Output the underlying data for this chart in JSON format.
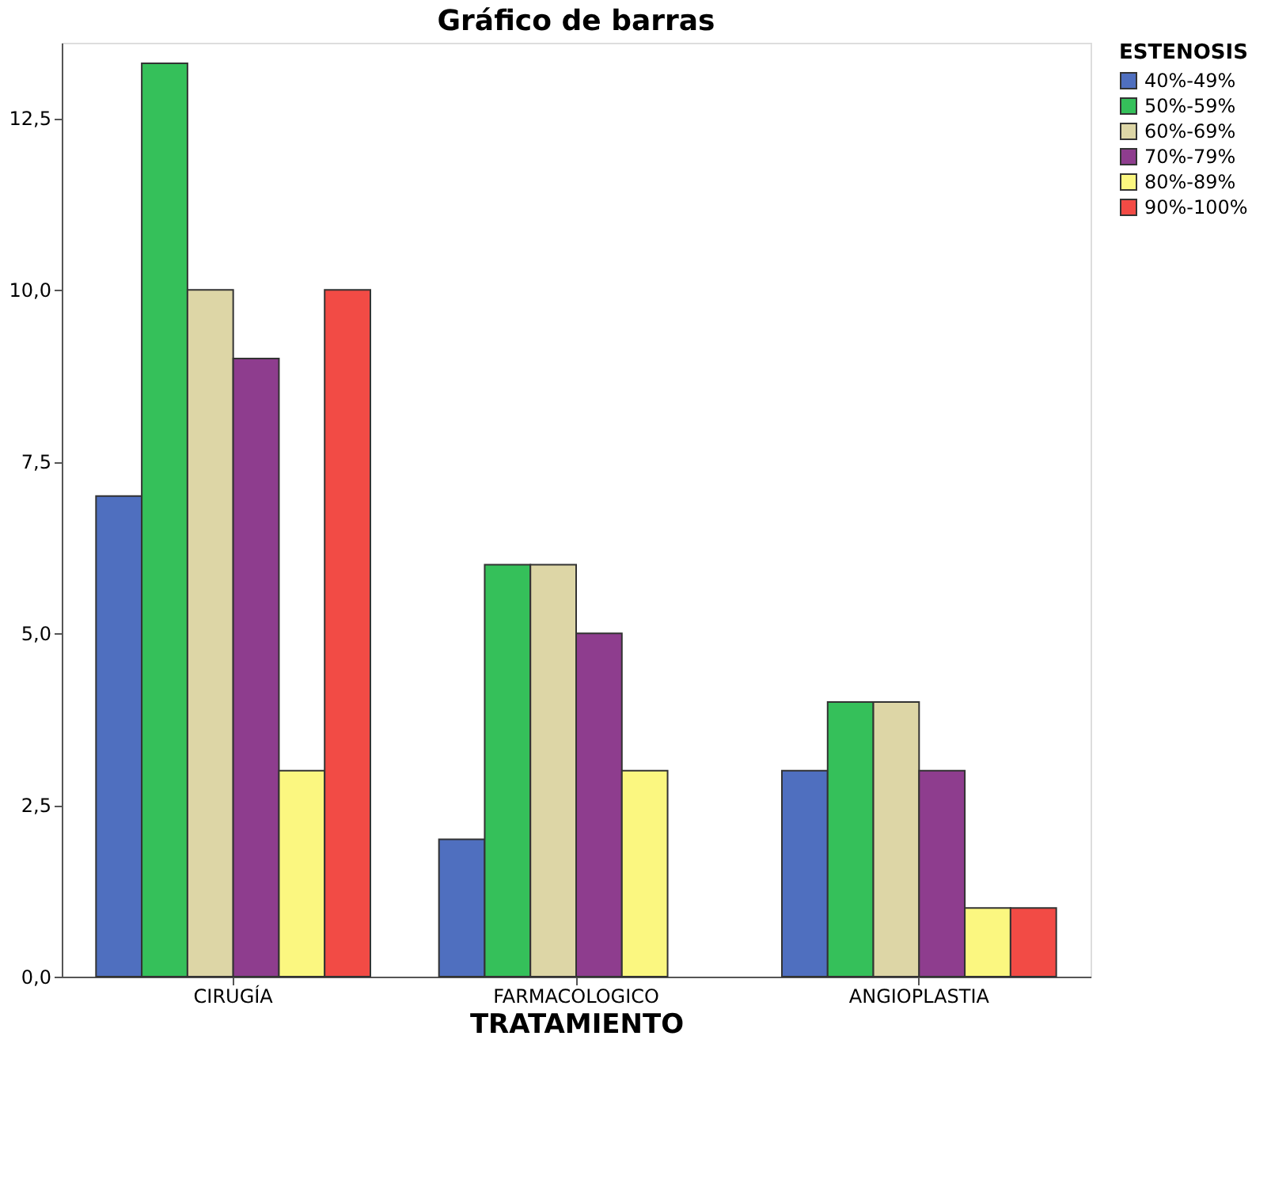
{
  "chart_data": {
    "type": "bar",
    "title": "Gráfico de barras",
    "xlabel": "TRATAMIENTO",
    "legend_title": "ESTENOSIS",
    "legend": "top right",
    "grid": false,
    "categories": [
      "CIRUGÍA",
      "FARMACOLOGICO",
      "ANGIOPLASTIA"
    ],
    "ylim": [
      0,
      13.6
    ],
    "yticks": [
      {
        "value": 0,
        "label": "0,0"
      },
      {
        "value": 2.5,
        "label": "2,5"
      },
      {
        "value": 5,
        "label": "5,0"
      },
      {
        "value": 7.5,
        "label": "7,5"
      },
      {
        "value": 10,
        "label": "10,0"
      },
      {
        "value": 12.5,
        "label": "12,5"
      }
    ],
    "series": [
      {
        "name": "40%-49%",
        "color": "#4f6fbf",
        "values": [
          7,
          2,
          3
        ]
      },
      {
        "name": "50%-59%",
        "color": "#35c05a",
        "values": [
          13.3,
          6,
          4
        ]
      },
      {
        "name": "60%-69%",
        "color": "#ddd6a6",
        "values": [
          10,
          6,
          4
        ]
      },
      {
        "name": "70%-79%",
        "color": "#8e3d8e",
        "values": [
          9,
          5,
          3
        ]
      },
      {
        "name": "80%-89%",
        "color": "#fbf780",
        "values": [
          3,
          3,
          1
        ]
      },
      {
        "name": "90%-100%",
        "color": "#f24b45",
        "values": [
          10,
          null,
          1
        ]
      }
    ]
  }
}
